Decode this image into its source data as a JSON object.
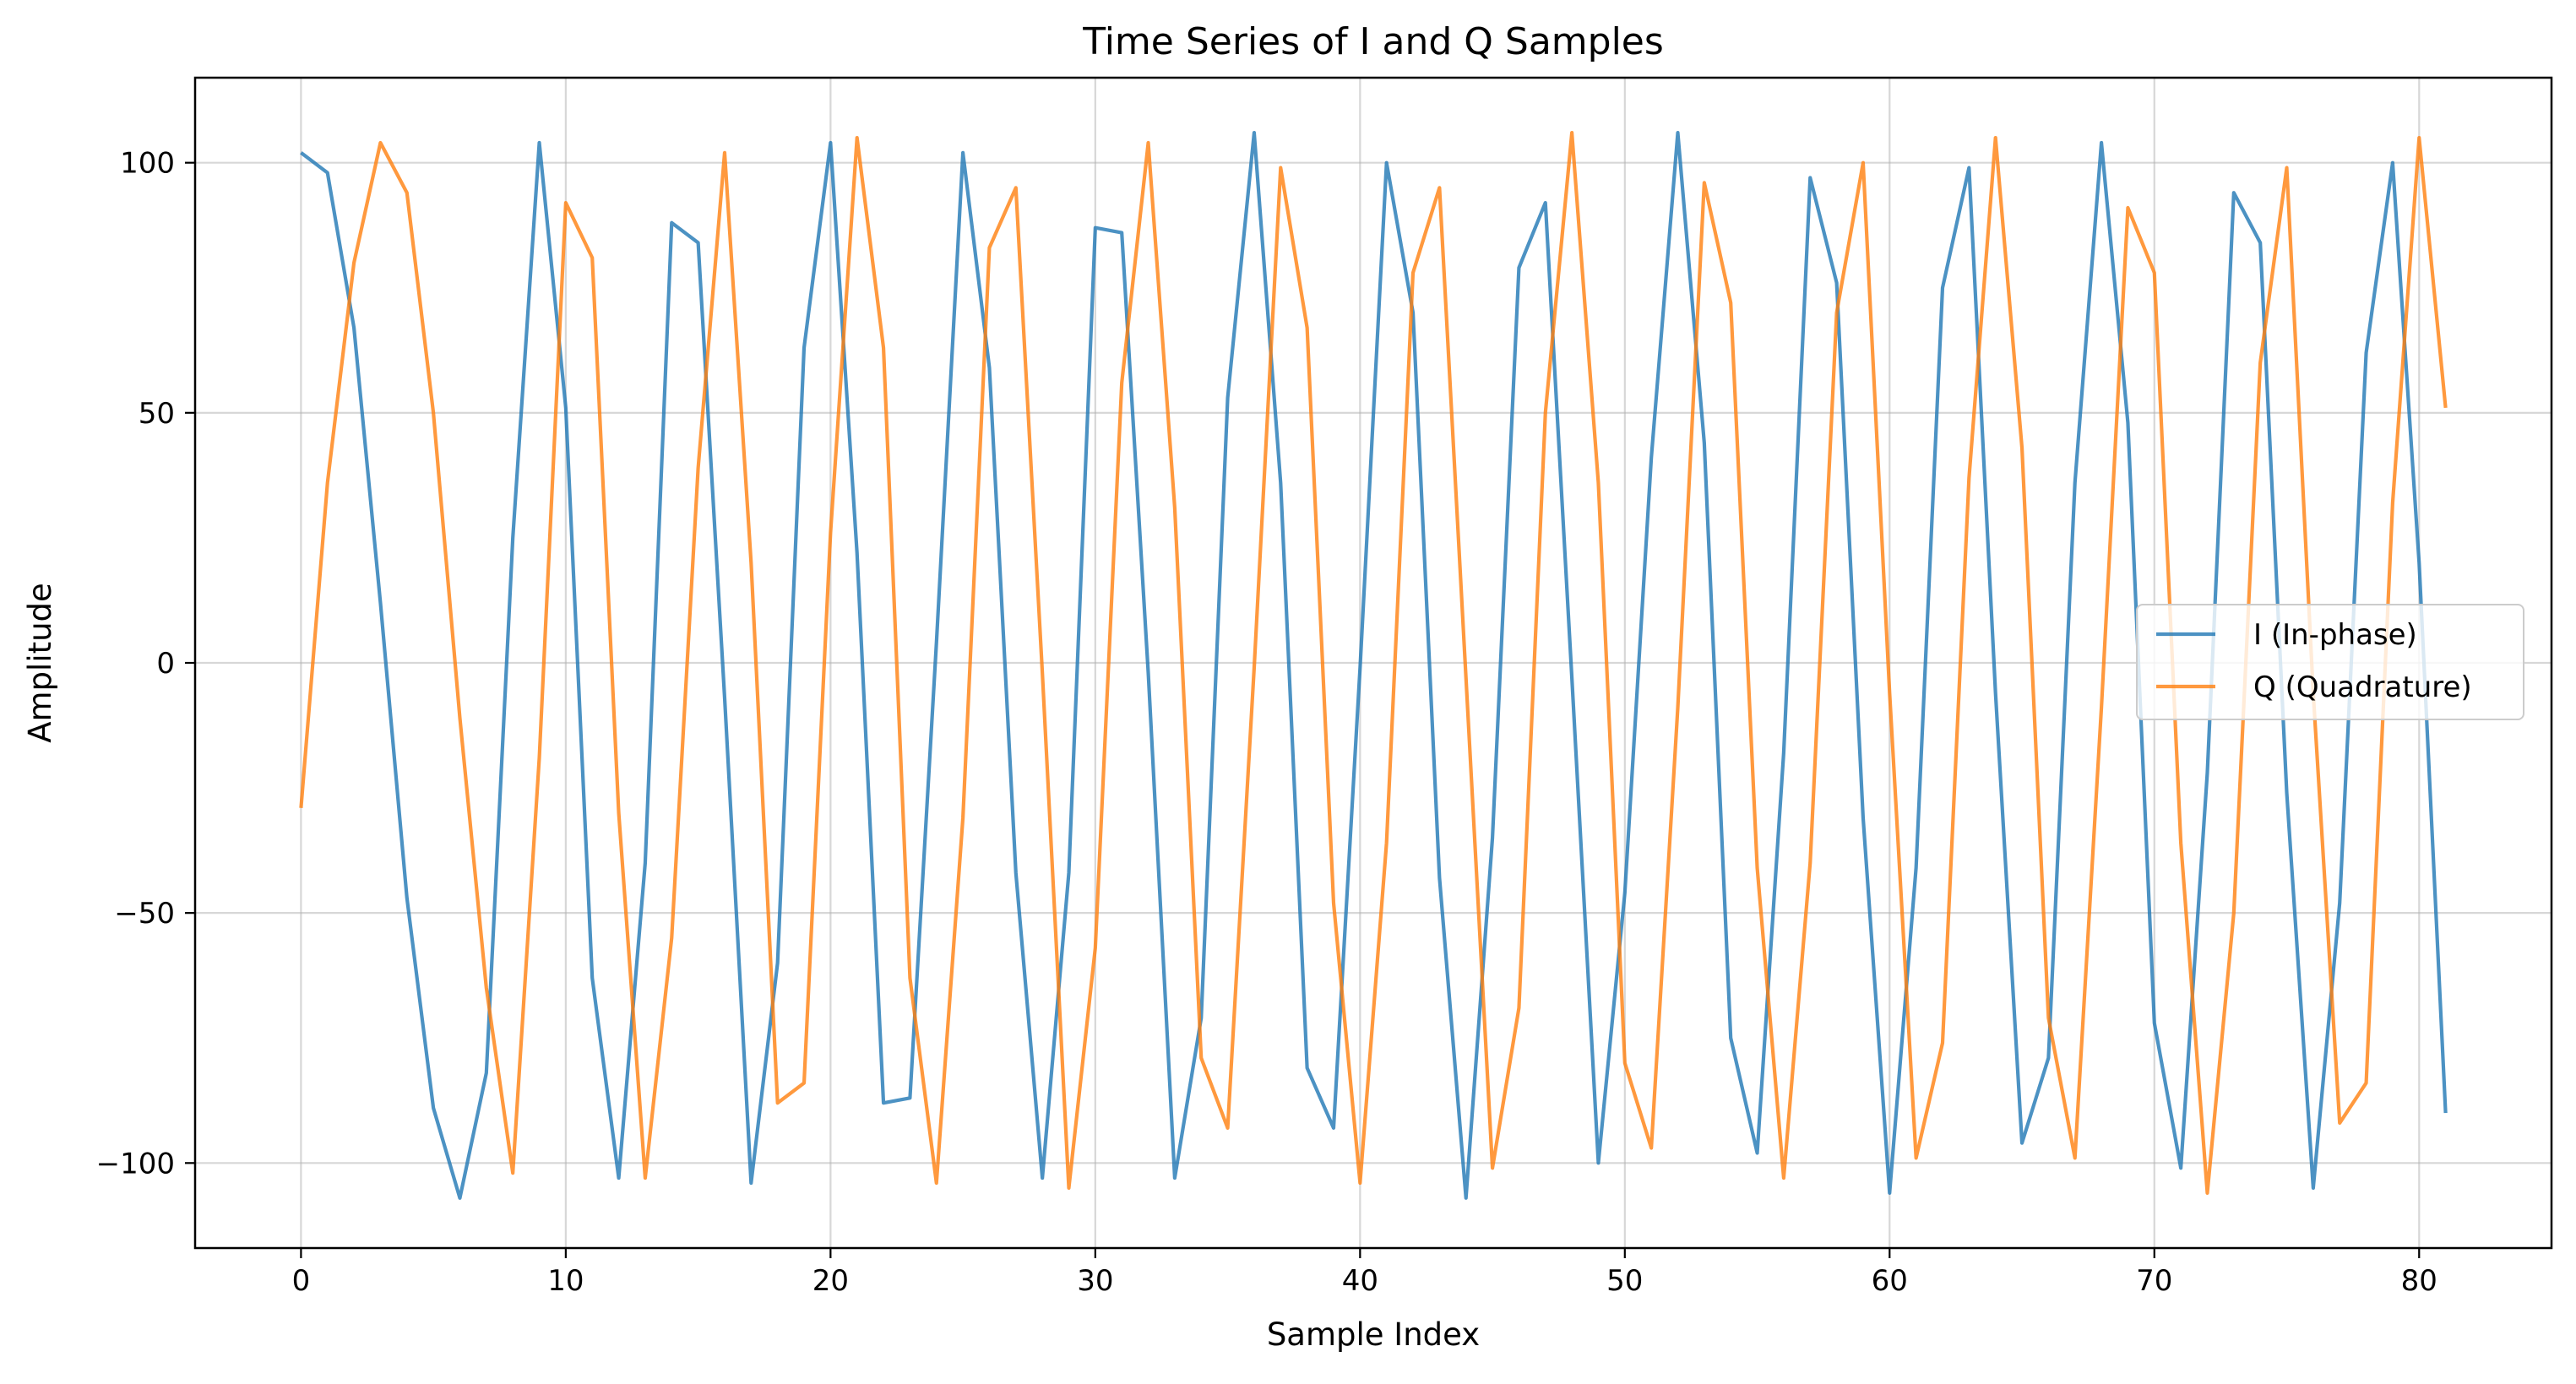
{
  "chart_data": {
    "type": "line",
    "title": "Time Series of I and Q Samples",
    "xlabel": "Sample Index",
    "ylabel": "Amplitude",
    "xlim": [
      -4,
      85
    ],
    "ylim": [
      -117,
      117
    ],
    "xticks": [
      0,
      10,
      20,
      30,
      40,
      50,
      60,
      70,
      80
    ],
    "yticks": [
      -100,
      -50,
      0,
      50,
      100
    ],
    "ytick_labels": [
      "−100",
      "−50",
      "0",
      "50",
      "100"
    ],
    "grid": true,
    "legend_position": "center-right",
    "x": [
      0,
      1,
      2,
      3,
      4,
      5,
      6,
      7,
      8,
      9,
      10,
      11,
      12,
      13,
      14,
      15,
      16,
      17,
      18,
      19,
      20,
      21,
      22,
      23,
      24,
      25,
      26,
      27,
      28,
      29,
      30,
      31,
      32,
      33,
      34,
      35,
      36,
      37,
      38,
      39,
      40,
      41,
      42,
      43,
      44,
      45,
      46,
      47,
      48,
      49,
      50,
      51,
      52,
      53,
      54,
      55,
      56,
      57,
      58,
      59,
      60,
      61,
      62,
      63,
      64,
      65,
      66,
      67,
      68,
      69,
      70,
      71,
      72,
      73,
      74,
      75,
      76,
      77,
      78,
      79,
      80,
      81
    ],
    "series": [
      {
        "name": "I (In-phase)",
        "color": "#1f77b4",
        "values": [
          102,
          98,
          67,
          12,
          -47,
          -89,
          -107,
          -82,
          25,
          104,
          51,
          -63,
          -103,
          -40,
          88,
          84,
          -7,
          -104,
          -60,
          63,
          104,
          22,
          -88,
          -87,
          4,
          102,
          59,
          -42,
          -103,
          -42,
          87,
          86,
          -2,
          -103,
          -71,
          53,
          106,
          36,
          -81,
          -93,
          -1,
          100,
          70,
          -43,
          -107,
          -35,
          79,
          92,
          -3,
          -100,
          -46,
          41,
          106,
          44,
          -75,
          -98,
          -18,
          97,
          76,
          -31,
          -106,
          -41,
          75,
          99,
          -6,
          -96,
          -79,
          36,
          104,
          48,
          -72,
          -101,
          -22,
          94,
          84,
          -26,
          -105,
          -48,
          62,
          100,
          20,
          -90
        ]
      },
      {
        "name": "Q (Quadrature)",
        "color": "#ff7f0e",
        "values": [
          -29,
          36,
          80,
          104,
          94,
          50,
          -11,
          -65,
          -102,
          -19,
          92,
          81,
          -30,
          -103,
          -55,
          39,
          102,
          20,
          -88,
          -84,
          26,
          105,
          63,
          -63,
          -104,
          -31,
          83,
          95,
          -2,
          -105,
          -57,
          56,
          104,
          31,
          -79,
          -93,
          -1,
          99,
          67,
          -48,
          -104,
          -36,
          78,
          95,
          -3,
          -101,
          -69,
          50,
          106,
          36,
          -80,
          -97,
          -9,
          96,
          72,
          -41,
          -103,
          -40,
          70,
          100,
          -6,
          -99,
          -76,
          37,
          105,
          43,
          -71,
          -99,
          -9,
          91,
          78,
          -36,
          -106,
          -50,
          60,
          99,
          -6,
          -92,
          -84,
          32,
          105,
          51
        ]
      }
    ]
  }
}
